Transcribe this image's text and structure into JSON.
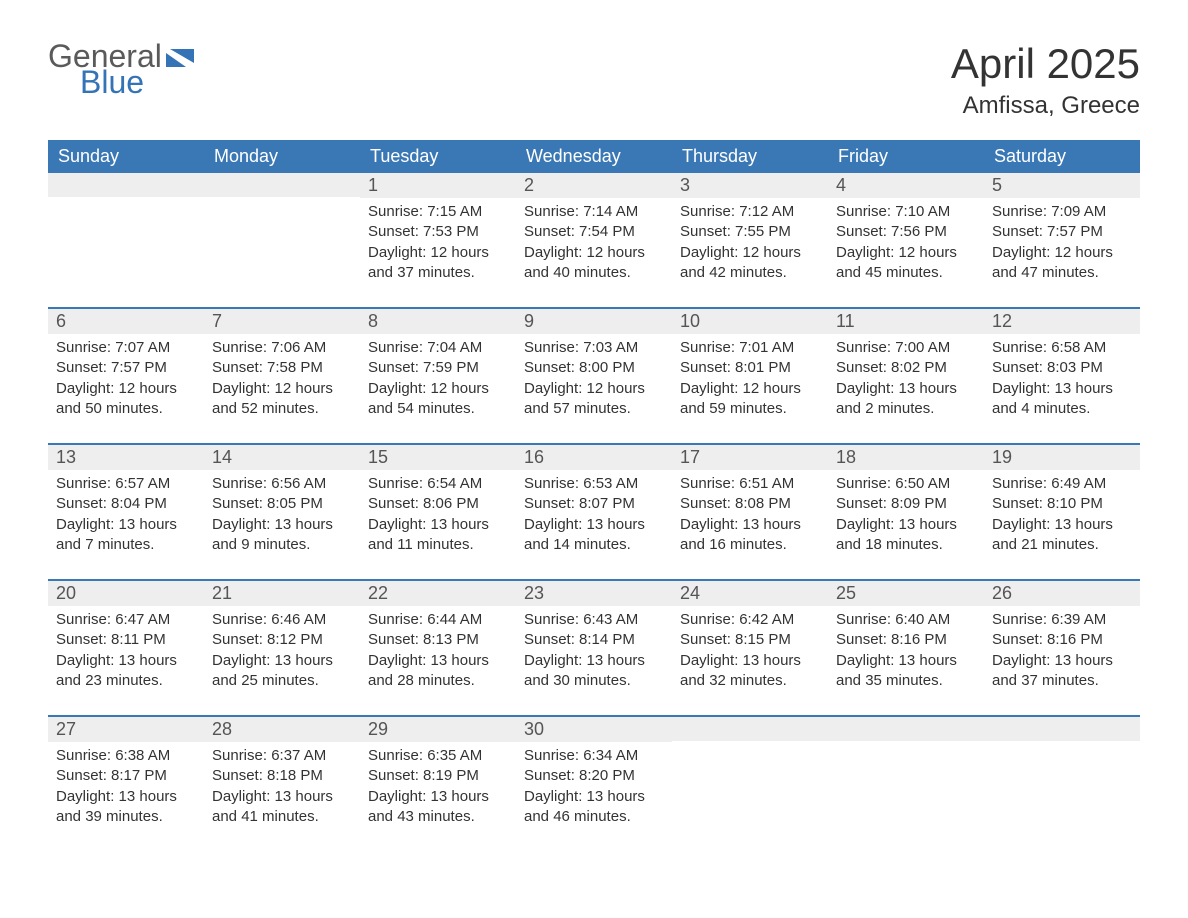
{
  "logo": {
    "text_top": "General",
    "text_bottom": "Blue",
    "color_top": "#5a5a5a",
    "color_bottom": "#3373b6",
    "icon_color": "#3373b6"
  },
  "title": "April 2025",
  "location": "Amfissa, Greece",
  "header_background": "#3a78b5",
  "header_text_color": "#ffffff",
  "day_bar_background": "#eeeeee",
  "row_border_color": "#3a78b5",
  "text_color": "#333333",
  "day_headers": [
    "Sunday",
    "Monday",
    "Tuesday",
    "Wednesday",
    "Thursday",
    "Friday",
    "Saturday"
  ],
  "weeks": [
    [
      null,
      null,
      {
        "day": "1",
        "sunrise": "Sunrise: 7:15 AM",
        "sunset": "Sunset: 7:53 PM",
        "daylight1": "Daylight: 12 hours",
        "daylight2": "and 37 minutes."
      },
      {
        "day": "2",
        "sunrise": "Sunrise: 7:14 AM",
        "sunset": "Sunset: 7:54 PM",
        "daylight1": "Daylight: 12 hours",
        "daylight2": "and 40 minutes."
      },
      {
        "day": "3",
        "sunrise": "Sunrise: 7:12 AM",
        "sunset": "Sunset: 7:55 PM",
        "daylight1": "Daylight: 12 hours",
        "daylight2": "and 42 minutes."
      },
      {
        "day": "4",
        "sunrise": "Sunrise: 7:10 AM",
        "sunset": "Sunset: 7:56 PM",
        "daylight1": "Daylight: 12 hours",
        "daylight2": "and 45 minutes."
      },
      {
        "day": "5",
        "sunrise": "Sunrise: 7:09 AM",
        "sunset": "Sunset: 7:57 PM",
        "daylight1": "Daylight: 12 hours",
        "daylight2": "and 47 minutes."
      }
    ],
    [
      {
        "day": "6",
        "sunrise": "Sunrise: 7:07 AM",
        "sunset": "Sunset: 7:57 PM",
        "daylight1": "Daylight: 12 hours",
        "daylight2": "and 50 minutes."
      },
      {
        "day": "7",
        "sunrise": "Sunrise: 7:06 AM",
        "sunset": "Sunset: 7:58 PM",
        "daylight1": "Daylight: 12 hours",
        "daylight2": "and 52 minutes."
      },
      {
        "day": "8",
        "sunrise": "Sunrise: 7:04 AM",
        "sunset": "Sunset: 7:59 PM",
        "daylight1": "Daylight: 12 hours",
        "daylight2": "and 54 minutes."
      },
      {
        "day": "9",
        "sunrise": "Sunrise: 7:03 AM",
        "sunset": "Sunset: 8:00 PM",
        "daylight1": "Daylight: 12 hours",
        "daylight2": "and 57 minutes."
      },
      {
        "day": "10",
        "sunrise": "Sunrise: 7:01 AM",
        "sunset": "Sunset: 8:01 PM",
        "daylight1": "Daylight: 12 hours",
        "daylight2": "and 59 minutes."
      },
      {
        "day": "11",
        "sunrise": "Sunrise: 7:00 AM",
        "sunset": "Sunset: 8:02 PM",
        "daylight1": "Daylight: 13 hours",
        "daylight2": "and 2 minutes."
      },
      {
        "day": "12",
        "sunrise": "Sunrise: 6:58 AM",
        "sunset": "Sunset: 8:03 PM",
        "daylight1": "Daylight: 13 hours",
        "daylight2": "and 4 minutes."
      }
    ],
    [
      {
        "day": "13",
        "sunrise": "Sunrise: 6:57 AM",
        "sunset": "Sunset: 8:04 PM",
        "daylight1": "Daylight: 13 hours",
        "daylight2": "and 7 minutes."
      },
      {
        "day": "14",
        "sunrise": "Sunrise: 6:56 AM",
        "sunset": "Sunset: 8:05 PM",
        "daylight1": "Daylight: 13 hours",
        "daylight2": "and 9 minutes."
      },
      {
        "day": "15",
        "sunrise": "Sunrise: 6:54 AM",
        "sunset": "Sunset: 8:06 PM",
        "daylight1": "Daylight: 13 hours",
        "daylight2": "and 11 minutes."
      },
      {
        "day": "16",
        "sunrise": "Sunrise: 6:53 AM",
        "sunset": "Sunset: 8:07 PM",
        "daylight1": "Daylight: 13 hours",
        "daylight2": "and 14 minutes."
      },
      {
        "day": "17",
        "sunrise": "Sunrise: 6:51 AM",
        "sunset": "Sunset: 8:08 PM",
        "daylight1": "Daylight: 13 hours",
        "daylight2": "and 16 minutes."
      },
      {
        "day": "18",
        "sunrise": "Sunrise: 6:50 AM",
        "sunset": "Sunset: 8:09 PM",
        "daylight1": "Daylight: 13 hours",
        "daylight2": "and 18 minutes."
      },
      {
        "day": "19",
        "sunrise": "Sunrise: 6:49 AM",
        "sunset": "Sunset: 8:10 PM",
        "daylight1": "Daylight: 13 hours",
        "daylight2": "and 21 minutes."
      }
    ],
    [
      {
        "day": "20",
        "sunrise": "Sunrise: 6:47 AM",
        "sunset": "Sunset: 8:11 PM",
        "daylight1": "Daylight: 13 hours",
        "daylight2": "and 23 minutes."
      },
      {
        "day": "21",
        "sunrise": "Sunrise: 6:46 AM",
        "sunset": "Sunset: 8:12 PM",
        "daylight1": "Daylight: 13 hours",
        "daylight2": "and 25 minutes."
      },
      {
        "day": "22",
        "sunrise": "Sunrise: 6:44 AM",
        "sunset": "Sunset: 8:13 PM",
        "daylight1": "Daylight: 13 hours",
        "daylight2": "and 28 minutes."
      },
      {
        "day": "23",
        "sunrise": "Sunrise: 6:43 AM",
        "sunset": "Sunset: 8:14 PM",
        "daylight1": "Daylight: 13 hours",
        "daylight2": "and 30 minutes."
      },
      {
        "day": "24",
        "sunrise": "Sunrise: 6:42 AM",
        "sunset": "Sunset: 8:15 PM",
        "daylight1": "Daylight: 13 hours",
        "daylight2": "and 32 minutes."
      },
      {
        "day": "25",
        "sunrise": "Sunrise: 6:40 AM",
        "sunset": "Sunset: 8:16 PM",
        "daylight1": "Daylight: 13 hours",
        "daylight2": "and 35 minutes."
      },
      {
        "day": "26",
        "sunrise": "Sunrise: 6:39 AM",
        "sunset": "Sunset: 8:16 PM",
        "daylight1": "Daylight: 13 hours",
        "daylight2": "and 37 minutes."
      }
    ],
    [
      {
        "day": "27",
        "sunrise": "Sunrise: 6:38 AM",
        "sunset": "Sunset: 8:17 PM",
        "daylight1": "Daylight: 13 hours",
        "daylight2": "and 39 minutes."
      },
      {
        "day": "28",
        "sunrise": "Sunrise: 6:37 AM",
        "sunset": "Sunset: 8:18 PM",
        "daylight1": "Daylight: 13 hours",
        "daylight2": "and 41 minutes."
      },
      {
        "day": "29",
        "sunrise": "Sunrise: 6:35 AM",
        "sunset": "Sunset: 8:19 PM",
        "daylight1": "Daylight: 13 hours",
        "daylight2": "and 43 minutes."
      },
      {
        "day": "30",
        "sunrise": "Sunrise: 6:34 AM",
        "sunset": "Sunset: 8:20 PM",
        "daylight1": "Daylight: 13 hours",
        "daylight2": "and 46 minutes."
      },
      null,
      null,
      null
    ]
  ]
}
